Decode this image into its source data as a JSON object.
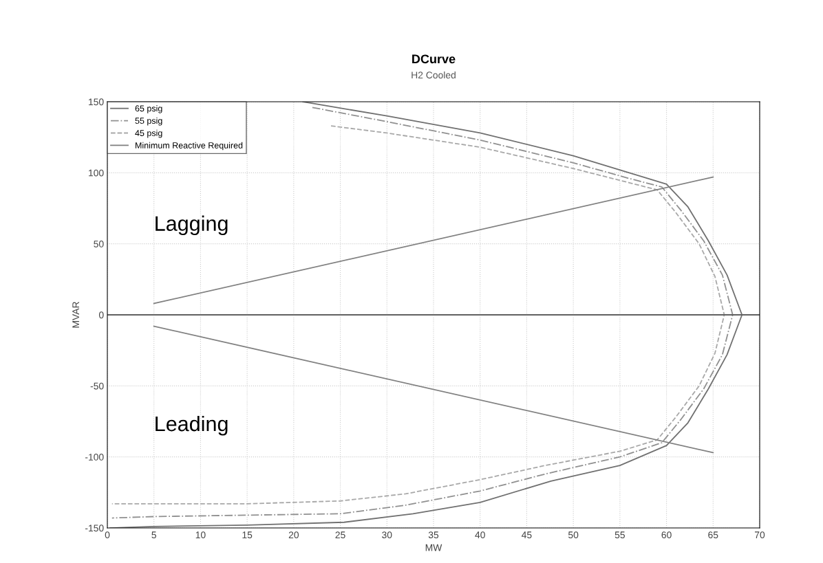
{
  "chart_data": {
    "type": "line",
    "title": "DCurve",
    "subtitle": "H2 Cooled",
    "xlabel": "MW",
    "ylabel": "MVAR",
    "xlim": [
      0,
      70
    ],
    "xticks": [
      0,
      5,
      10,
      15,
      20,
      25,
      30,
      35,
      40,
      45,
      50,
      55,
      60,
      65,
      70
    ],
    "ylim": [
      -150,
      150
    ],
    "yticks": [
      -150,
      -100,
      -50,
      0,
      50,
      100,
      150
    ],
    "grid": true,
    "legend": "top left",
    "annotations": [
      "Lagging",
      "Leading"
    ],
    "ref_lines": [
      {
        "axis": "y",
        "value": 0,
        "color": "#606060"
      }
    ],
    "series": [
      {
        "name": "65 psig",
        "color": "#707070",
        "line_style": "solid",
        "x": [
          21,
          30,
          40,
          50,
          56,
          60,
          62.3,
          64.5,
          66.5,
          68.1,
          66.5,
          64.5,
          62.3,
          60,
          55,
          47.6,
          40,
          32.8,
          25.4,
          15,
          5,
          0.3
        ],
        "values": [
          150,
          140,
          128,
          112,
          100,
          92,
          76,
          52,
          28,
          0,
          -28,
          -52,
          -76,
          -92,
          -106,
          -117,
          -132,
          -140,
          -146,
          -148,
          -149,
          -150
        ]
      },
      {
        "name": "55 psig",
        "color": "#909090",
        "line_style": "dashdot",
        "x": [
          22,
          30,
          40,
          50,
          56,
          59.5,
          61.5,
          64,
          66,
          67.1,
          66,
          64,
          61.5,
          59.5,
          55,
          47,
          40,
          32,
          25,
          15,
          5,
          0.5
        ],
        "values": [
          146,
          136,
          123,
          107,
          96,
          90,
          74,
          52,
          28,
          0,
          -28,
          -52,
          -74,
          -90,
          -100,
          -112,
          -124,
          -134,
          -140,
          -141,
          -142,
          -143
        ]
      },
      {
        "name": "45 psig",
        "color": "#a8a8a8",
        "line_style": "dashed",
        "x": [
          24,
          30,
          40,
          50,
          56,
          59,
          61,
          63.5,
          65.2,
          66.2,
          65.2,
          63.5,
          61,
          59,
          55,
          47,
          40,
          32,
          25,
          15,
          5,
          0.5
        ],
        "values": [
          133,
          128,
          118,
          103,
          93,
          88,
          72,
          50,
          27,
          0,
          -27,
          -50,
          -72,
          -88,
          -96,
          -106,
          -116,
          -126,
          -131,
          -133,
          -133,
          -133
        ]
      },
      {
        "name": "Minimum Reactive Required",
        "color": "#808080",
        "line_style": "solid",
        "x": [
          5,
          65
        ],
        "values": [
          8,
          97
        ]
      },
      {
        "color": "#808080",
        "line_style": "solid",
        "x": [
          5,
          65
        ],
        "values": [
          -8,
          -97
        ]
      }
    ]
  }
}
